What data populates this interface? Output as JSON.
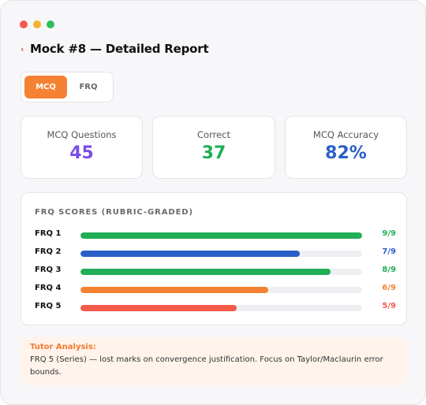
{
  "window": {
    "dots": [
      {
        "name": "close",
        "color": "#f25a4a"
      },
      {
        "name": "minimize",
        "color": "#f6b12b"
      },
      {
        "name": "maximize",
        "color": "#2bbf5a"
      }
    ]
  },
  "header": {
    "back_glyph": "‹",
    "title": "Mock #8 — Detailed Report"
  },
  "tabs": [
    {
      "label": "MCQ",
      "active": true
    },
    {
      "label": "FRQ",
      "active": false
    }
  ],
  "stats": [
    {
      "label": "MCQ Questions",
      "value": "45",
      "color": "#7b4de8"
    },
    {
      "label": "Correct",
      "value": "37",
      "color": "#1fae56"
    },
    {
      "label": "MCQ Accuracy",
      "value": "82%",
      "color": "#2b5fc8"
    }
  ],
  "frq": {
    "heading": "FRQ SCORES (RUBRIC-GRADED)",
    "items": [
      {
        "label": "FRQ 1",
        "score": "9/9",
        "fraction": 1.0,
        "color": "#1fae56"
      },
      {
        "label": "FRQ 2",
        "score": "7/9",
        "fraction": 0.7778,
        "color": "#2b5fc8"
      },
      {
        "label": "FRQ 3",
        "score": "8/9",
        "fraction": 0.8889,
        "color": "#1fae56"
      },
      {
        "label": "FRQ 4",
        "score": "6/9",
        "fraction": 0.6667,
        "color": "#f58233"
      },
      {
        "label": "FRQ 5",
        "score": "5/9",
        "fraction": 0.5556,
        "color": "#f25a4a"
      }
    ]
  },
  "tutor": {
    "title": "Tutor Analysis:",
    "text": "FRQ 5 (Series) — lost marks on convergence justification. Focus on Taylor/Maclaurin error bounds."
  }
}
